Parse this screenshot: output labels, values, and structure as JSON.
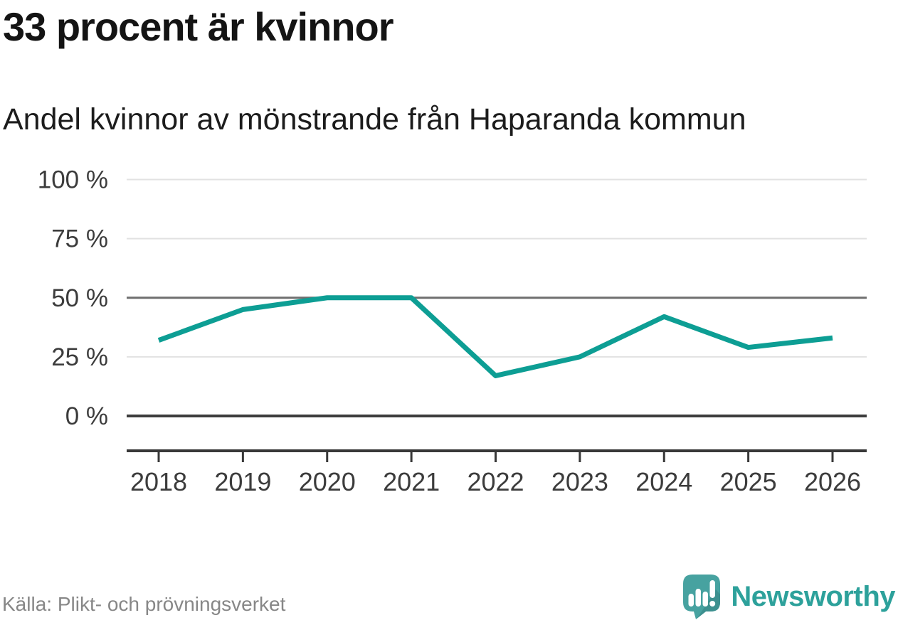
{
  "header": {
    "title": "33 procent är kvinnor",
    "subtitle": "Andel kvinnor av mönstrande från Haparanda kommun"
  },
  "footer": {
    "source": "Källa: Plikt- och prövningsverket",
    "brand": "Newsworthy"
  },
  "colors": {
    "line": "#0d9e94",
    "grid_light": "#e2e2e2",
    "grid_mid": "#6e6e6e",
    "grid_zero": "#3d3d3d",
    "axis": "#383838",
    "tick_label": "#3c3c3c",
    "logo_icon": "#47a2a0",
    "logo_icon_shadow": "#3d908f",
    "logo_text": "#2da19b"
  },
  "chart_data": {
    "type": "line",
    "title": "33 procent är kvinnor",
    "subtitle": "Andel kvinnor av mönstrande från Haparanda kommun",
    "categories": [
      "2018",
      "2019",
      "2020",
      "2021",
      "2022",
      "2023",
      "2024",
      "2025",
      "2026"
    ],
    "series": [
      {
        "name": "Andel kvinnor av mönstrande",
        "values": [
          32,
          45,
          50,
          50,
          17,
          25,
          42,
          29,
          33
        ]
      }
    ],
    "xlabel": "",
    "ylabel": "",
    "ylim": [
      0,
      100
    ],
    "yticks": [
      0,
      25,
      50,
      75,
      100
    ],
    "ytick_labels": [
      "0 %",
      "25 %",
      "50 %",
      "75 %",
      "100 %"
    ],
    "emphasized_yticks": [
      0,
      50
    ],
    "grid": "horizontal",
    "legend": "none",
    "unit": "%"
  }
}
